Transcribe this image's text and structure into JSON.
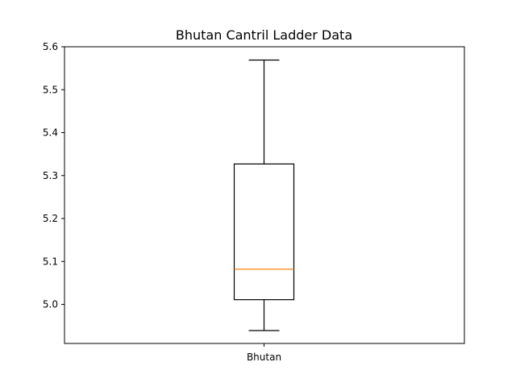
{
  "chart_data": {
    "type": "box",
    "title": "Bhutan Cantril Ladder Data",
    "xlabel": "",
    "ylabel": "",
    "categories": [
      "Bhutan"
    ],
    "boxes": [
      {
        "category": "Bhutan",
        "whisker_low": 4.939,
        "q1": 5.011,
        "median": 5.082,
        "q3": 5.327,
        "whisker_high": 5.569
      }
    ],
    "ylim": [
      4.909,
      5.6
    ],
    "yticks": [
      "5.0",
      "5.1",
      "5.2",
      "5.3",
      "5.4",
      "5.5",
      "5.6"
    ],
    "grid": false,
    "colors": {
      "box": "#000000",
      "median": "#ff7f0e",
      "whisker": "#000000"
    }
  }
}
